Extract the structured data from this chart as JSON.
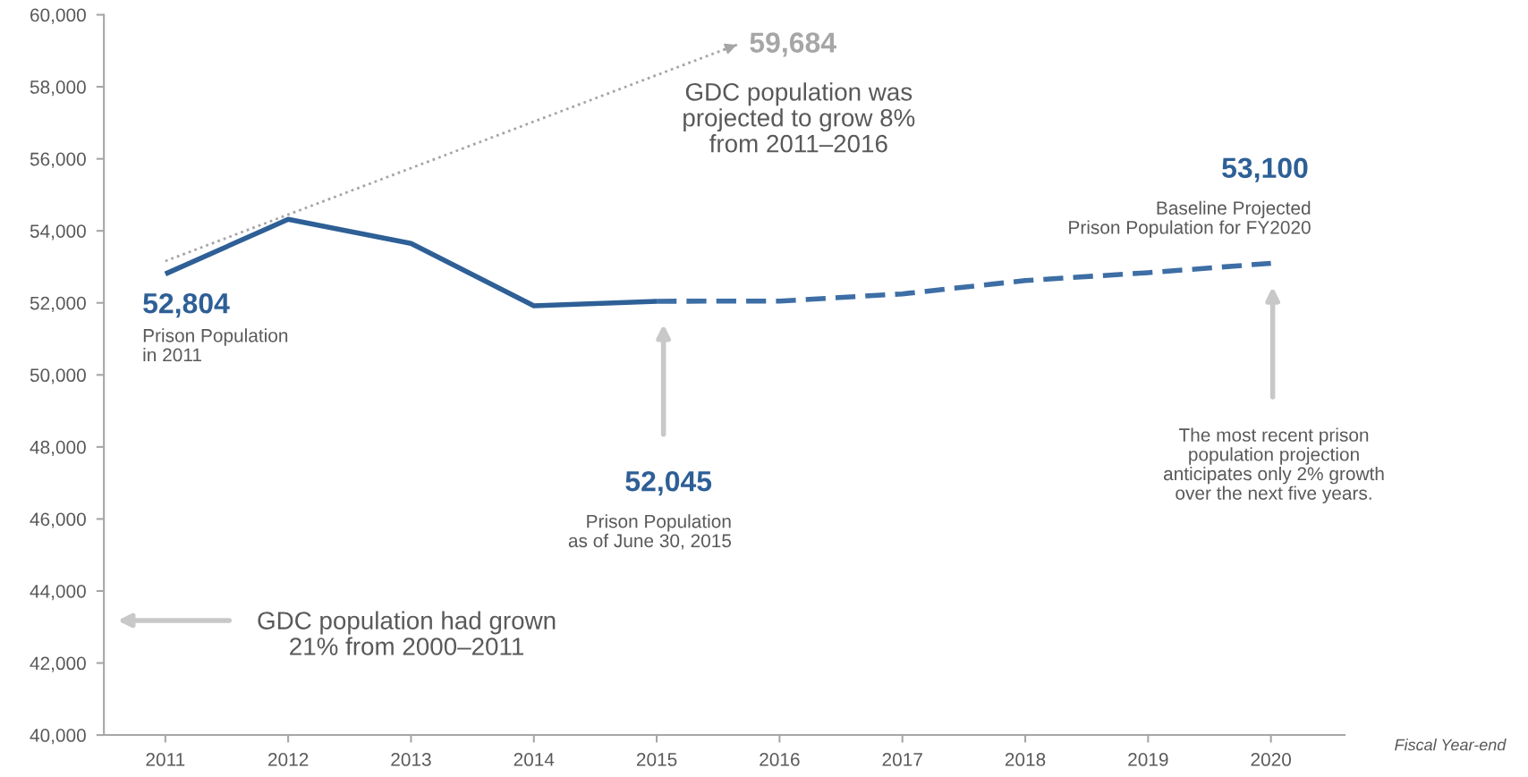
{
  "chart_data": {
    "type": "line",
    "xlabel": "Fiscal Year-end",
    "series": [
      {
        "color": "#2e5f96",
        "line_style": "solid",
        "x": [
          2011,
          2012,
          2013,
          2014,
          2015
        ],
        "values": [
          52804,
          54320,
          53650,
          51920,
          52045
        ]
      },
      {
        "color": "#3d6ea5",
        "line_style": "dashed",
        "x": [
          2015,
          2016,
          2017,
          2018,
          2019,
          2020
        ],
        "values": [
          52045,
          52050,
          52250,
          52620,
          52840,
          53100
        ]
      },
      {
        "color": "#a6a6a6",
        "line_style": "dotted",
        "x": [
          2011,
          2015.67
        ],
        "values": [
          53160,
          59190
        ]
      }
    ],
    "xlim": [
      2010.5,
      2020.6
    ],
    "xticks": [
      2011,
      2012,
      2013,
      2014,
      2015,
      2016,
      2017,
      2018,
      2019,
      2020
    ],
    "ylim": [
      40000,
      60000
    ],
    "yticks": [
      {
        "value": 40000,
        "label": "40,000"
      },
      {
        "value": 42000,
        "label": "42,000"
      },
      {
        "value": 44000,
        "label": "44,000"
      },
      {
        "value": 46000,
        "label": "46,000"
      },
      {
        "value": 48000,
        "label": "48,000"
      },
      {
        "value": 50000,
        "label": "50,000"
      },
      {
        "value": 52000,
        "label": "52,000"
      },
      {
        "value": 54000,
        "label": "54,000"
      },
      {
        "value": 56000,
        "label": "56,000"
      },
      {
        "value": 58000,
        "label": "58,000"
      },
      {
        "value": 60000,
        "label": "60,000"
      }
    ],
    "grid": false,
    "legend": false,
    "marker": "none",
    "annotations": [
      "52,804",
      "52,045",
      "53,100",
      "59,684",
      "Prison Population\nin 2011",
      "Prison Population\nas of June 30, 2015",
      "Baseline Projected\nPrison Population for FY2020",
      "The most recent prison\npopulation projection\nanticipates only 2% growth\nover the next five years.",
      "GDC population was\nprojected to grow 8%\nfrom 2011–2016",
      "GDC population had grown\n21% from 2000–2011"
    ]
  }
}
